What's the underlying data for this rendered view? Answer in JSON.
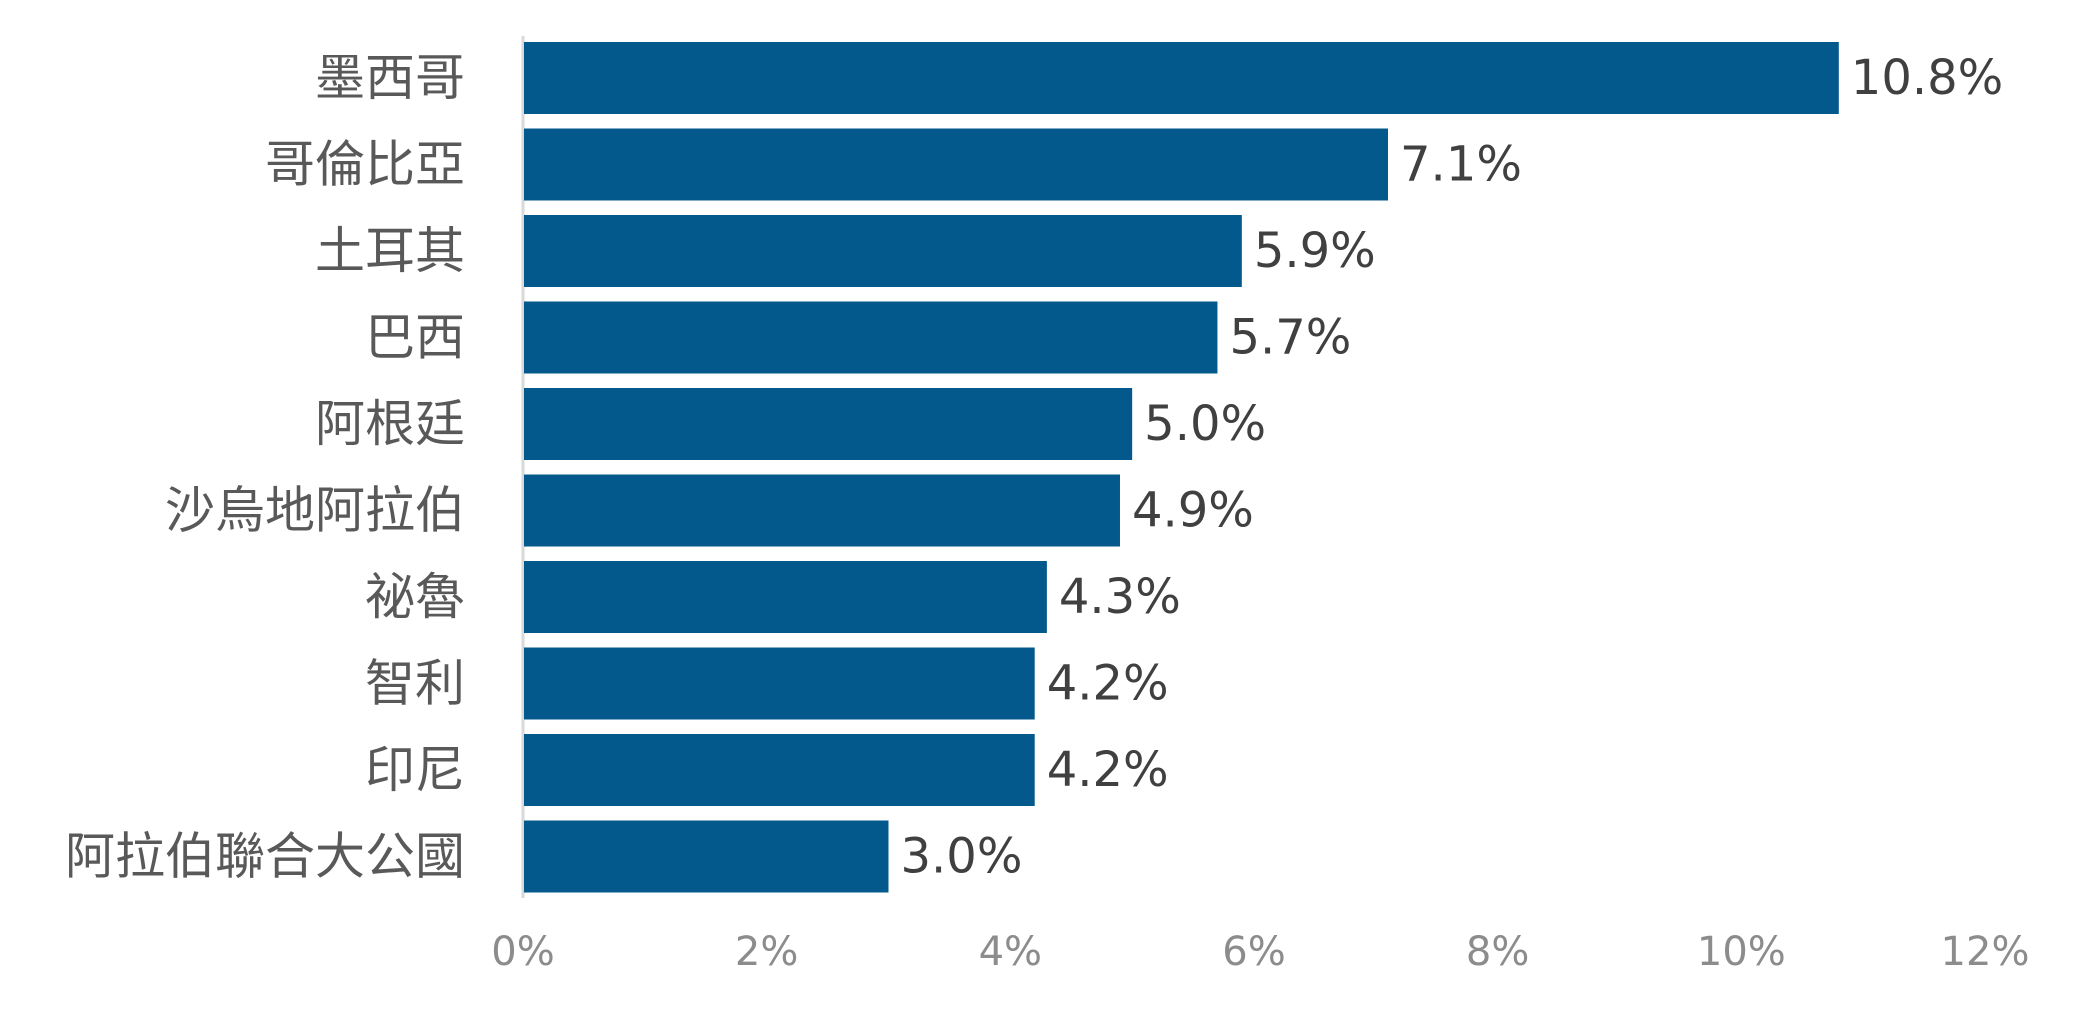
{
  "chart_data": {
    "type": "bar",
    "orientation": "horizontal",
    "categories": [
      "墨西哥",
      "哥倫比亞",
      "土耳其",
      "巴西",
      "阿根廷",
      "沙烏地阿拉伯",
      "祕魯",
      "智利",
      "印尼",
      "阿拉伯聯合大公國"
    ],
    "values": [
      10.8,
      7.1,
      5.9,
      5.7,
      5.0,
      4.9,
      4.3,
      4.2,
      4.2,
      3.0
    ],
    "value_labels": [
      "10.8%",
      "7.1%",
      "5.9%",
      "5.7%",
      "5.0%",
      "4.9%",
      "4.3%",
      "4.2%",
      "4.2%",
      "3.0%"
    ],
    "xlim": [
      0,
      12
    ],
    "xticks": [
      0,
      2,
      4,
      6,
      8,
      10,
      12
    ],
    "xtick_labels": [
      "0%",
      "2%",
      "4%",
      "6%",
      "8%",
      "10%",
      "12%"
    ],
    "title": "",
    "xlabel": "",
    "ylabel": "",
    "grid": false,
    "legend": "none",
    "bar_color": "#03588C",
    "axis_color": "#D9D9D9"
  }
}
